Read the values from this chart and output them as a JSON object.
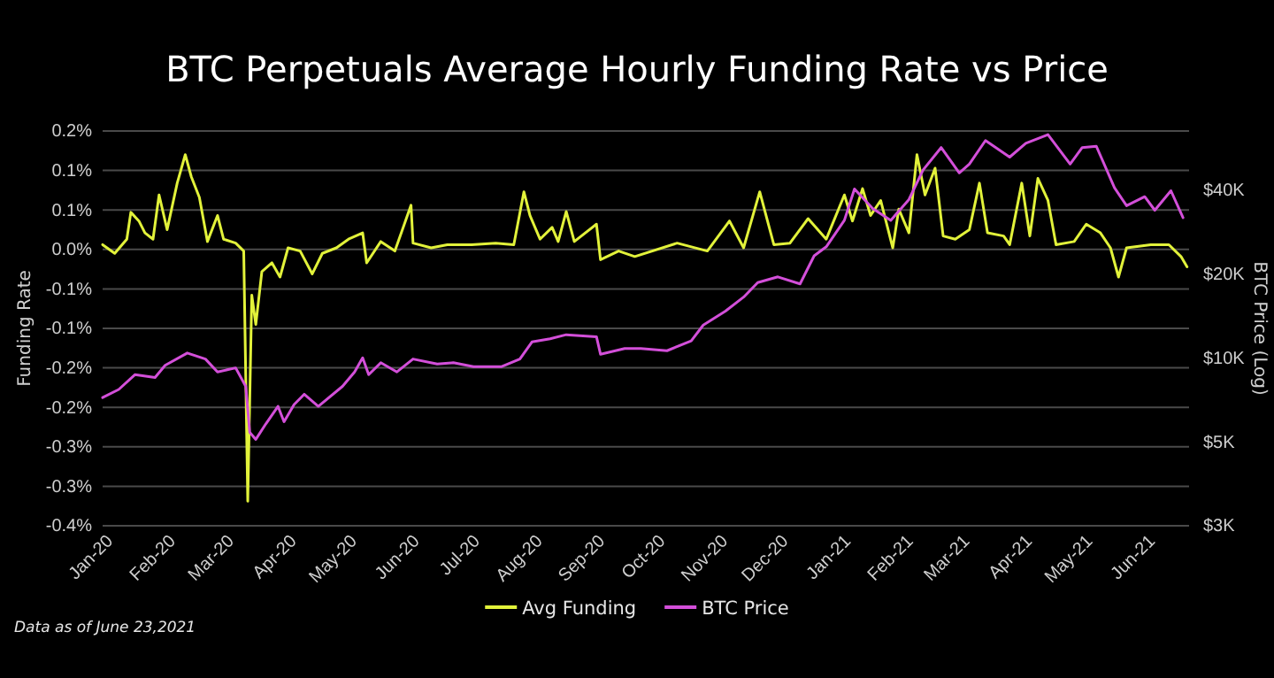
{
  "chart_data": {
    "type": "line",
    "title": "BTC Perpetuals Average Hourly Funding Rate vs Price",
    "ylabel": "Funding Rate",
    "y2label": "BTC Price (Log)",
    "annotations": [
      "Data as of June 23,2021"
    ],
    "xlim": [
      "2020-01-01",
      "2021-06-23"
    ],
    "xticks": [
      {
        "value": "2020-01-01",
        "label": "Jan-20"
      },
      {
        "value": "2020-02-01",
        "label": "Feb-20"
      },
      {
        "value": "2020-03-01",
        "label": "Mar-20"
      },
      {
        "value": "2020-04-01",
        "label": "Apr-20"
      },
      {
        "value": "2020-05-01",
        "label": "May-20"
      },
      {
        "value": "2020-06-01",
        "label": "Jun-20"
      },
      {
        "value": "2020-07-01",
        "label": "Jul-20"
      },
      {
        "value": "2020-08-01",
        "label": "Aug-20"
      },
      {
        "value": "2020-09-01",
        "label": "Sep-20"
      },
      {
        "value": "2020-10-01",
        "label": "Oct-20"
      },
      {
        "value": "2020-11-01",
        "label": "Nov-20"
      },
      {
        "value": "2020-12-01",
        "label": "Dec-20"
      },
      {
        "value": "2021-01-01",
        "label": "Jan-21"
      },
      {
        "value": "2021-02-01",
        "label": "Feb-21"
      },
      {
        "value": "2021-03-01",
        "label": "Mar-21"
      },
      {
        "value": "2021-04-01",
        "label": "Apr-21"
      },
      {
        "value": "2021-05-01",
        "label": "May-21"
      },
      {
        "value": "2021-06-01",
        "label": "Jun-21"
      }
    ],
    "ylim": [
      -0.35,
      0.15
    ],
    "yticks": [
      {
        "value": 0.15,
        "label": "0.2%"
      },
      {
        "value": 0.1,
        "label": "0.1%"
      },
      {
        "value": 0.05,
        "label": "0.1%"
      },
      {
        "value": 0,
        "label": "0.0%"
      },
      {
        "value": -0.05,
        "label": "-0.1%"
      },
      {
        "value": -0.1,
        "label": "-0.1%"
      },
      {
        "value": -0.15,
        "label": "-0.2%"
      },
      {
        "value": -0.2,
        "label": "-0.2%"
      },
      {
        "value": -0.25,
        "label": "-0.3%"
      },
      {
        "value": -0.3,
        "label": "-0.3%"
      },
      {
        "value": -0.35,
        "label": "-0.4%"
      }
    ],
    "y2lim": [
      2500,
      65000
    ],
    "y2ticks": [
      {
        "value": 2500,
        "label": "$3K"
      },
      {
        "value": 5000,
        "label": "$5K"
      },
      {
        "value": 10000,
        "label": "$10K"
      },
      {
        "value": 20000,
        "label": "$20K"
      },
      {
        "value": 40000,
        "label": "$40K"
      }
    ],
    "log": "y2",
    "grid": "y",
    "legend": "bottom",
    "series": [
      {
        "name": "Avg Funding",
        "color": "#e2f23a",
        "x": [
          "2020-01-01",
          "2020-01-07",
          "2020-01-13",
          "2020-01-15",
          "2020-01-19",
          "2020-01-22",
          "2020-01-26",
          "2020-01-29",
          "2020-02-02",
          "2020-02-07",
          "2020-02-11",
          "2020-02-14",
          "2020-02-18",
          "2020-02-22",
          "2020-02-27",
          "2020-03-01",
          "2020-03-07",
          "2020-03-11",
          "2020-03-13",
          "2020-03-15",
          "2020-03-17",
          "2020-03-20",
          "2020-03-25",
          "2020-03-29",
          "2020-04-02",
          "2020-04-08",
          "2020-04-14",
          "2020-04-19",
          "2020-04-26",
          "2020-05-02",
          "2020-05-09",
          "2020-05-11",
          "2020-05-18",
          "2020-05-25",
          "2020-06-02",
          "2020-06-03",
          "2020-06-12",
          "2020-06-20",
          "2020-07-02",
          "2020-07-14",
          "2020-07-23",
          "2020-07-28",
          "2020-07-31",
          "2020-08-05",
          "2020-08-11",
          "2020-08-14",
          "2020-08-18",
          "2020-08-22",
          "2020-09-02",
          "2020-09-04",
          "2020-09-13",
          "2020-09-21",
          "2020-10-12",
          "2020-10-27",
          "2020-11-07",
          "2020-11-14",
          "2020-11-22",
          "2020-11-29",
          "2020-12-07",
          "2020-12-16",
          "2020-12-25",
          "2021-01-03",
          "2021-01-07",
          "2021-01-12",
          "2021-01-16",
          "2021-01-21",
          "2021-01-27",
          "2021-01-30",
          "2021-02-04",
          "2021-02-08",
          "2021-02-12",
          "2021-02-17",
          "2021-02-21",
          "2021-02-27",
          "2021-03-06",
          "2021-03-11",
          "2021-03-15",
          "2021-03-23",
          "2021-03-26",
          "2021-04-01",
          "2021-04-05",
          "2021-04-09",
          "2021-04-14",
          "2021-04-18",
          "2021-04-27",
          "2021-05-03",
          "2021-05-10",
          "2021-05-15",
          "2021-05-19",
          "2021-05-23",
          "2021-06-04",
          "2021-06-13",
          "2021-06-19",
          "2021-06-22"
        ],
        "values": [
          0.006,
          -0.005,
          0.013,
          0.047,
          0.036,
          0.021,
          0.013,
          0.069,
          0.025,
          0.084,
          0.12,
          0.092,
          0.066,
          0.01,
          0.043,
          0.013,
          0.008,
          -0.002,
          -0.319,
          -0.058,
          -0.095,
          -0.028,
          -0.017,
          -0.035,
          0.002,
          -0.002,
          -0.031,
          -0.005,
          0.002,
          0.013,
          0.021,
          -0.017,
          0.01,
          -0.002,
          0.056,
          0.008,
          0.002,
          0.006,
          0.006,
          0.008,
          0.006,
          0.073,
          0.043,
          0.013,
          0.028,
          0.01,
          0.048,
          0.01,
          0.032,
          -0.013,
          -0.002,
          -0.009,
          0.008,
          -0.002,
          0.036,
          0.002,
          0.073,
          0.006,
          0.008,
          0.039,
          0.013,
          0.069,
          0.036,
          0.077,
          0.043,
          0.062,
          0.002,
          0.051,
          0.021,
          0.12,
          0.069,
          0.103,
          0.017,
          0.013,
          0.025,
          0.084,
          0.021,
          0.017,
          0.006,
          0.084,
          0.017,
          0.09,
          0.062,
          0.006,
          0.01,
          0.032,
          0.021,
          0.002,
          -0.035,
          0.002,
          0.006,
          0.006,
          -0.009,
          -0.022
        ]
      },
      {
        "name": "BTC Price",
        "color": "#d34fd9",
        "axis": "y2",
        "x": [
          "2020-01-01",
          "2020-01-09",
          "2020-01-17",
          "2020-01-27",
          "2020-02-01",
          "2020-02-12",
          "2020-02-21",
          "2020-02-27",
          "2020-03-07",
          "2020-03-12",
          "2020-03-14",
          "2020-03-17",
          "2020-03-22",
          "2020-03-28",
          "2020-03-31",
          "2020-04-05",
          "2020-04-10",
          "2020-04-17",
          "2020-04-29",
          "2020-05-05",
          "2020-05-09",
          "2020-05-12",
          "2020-05-18",
          "2020-05-26",
          "2020-06-03",
          "2020-06-15",
          "2020-06-23",
          "2020-07-03",
          "2020-07-17",
          "2020-07-26",
          "2020-08-01",
          "2020-08-10",
          "2020-08-18",
          "2020-09-02",
          "2020-09-04",
          "2020-09-16",
          "2020-09-24",
          "2020-10-07",
          "2020-10-19",
          "2020-10-25",
          "2020-11-05",
          "2020-11-14",
          "2020-11-21",
          "2020-12-01",
          "2020-12-12",
          "2020-12-19",
          "2020-12-25",
          "2021-01-03",
          "2021-01-08",
          "2021-01-17",
          "2021-01-26",
          "2021-02-04",
          "2021-02-11",
          "2021-02-20",
          "2021-03-01",
          "2021-03-06",
          "2021-03-14",
          "2021-03-26",
          "2021-04-03",
          "2021-04-14",
          "2021-04-25",
          "2021-05-01",
          "2021-05-08",
          "2021-05-17",
          "2021-05-23",
          "2021-06-01",
          "2021-06-06",
          "2021-06-14",
          "2021-06-20"
        ],
        "values": [
          7200,
          7700,
          8700,
          8500,
          9400,
          10400,
          9900,
          8900,
          9200,
          7900,
          5400,
          5100,
          5800,
          6700,
          5900,
          6800,
          7400,
          6700,
          7900,
          8900,
          10000,
          8700,
          9600,
          8900,
          9900,
          9500,
          9600,
          9300,
          9300,
          9900,
          11400,
          11700,
          12100,
          11900,
          10300,
          10800,
          10800,
          10600,
          11500,
          13100,
          14700,
          16500,
          18600,
          19500,
          18400,
          23200,
          25000,
          31100,
          40300,
          34300,
          31100,
          36900,
          47100,
          56700,
          46000,
          49500,
          60100,
          52400,
          58700,
          63100,
          49500,
          56700,
          57300,
          40700,
          35100,
          37800,
          33800,
          39700,
          31800
        ]
      }
    ]
  }
}
